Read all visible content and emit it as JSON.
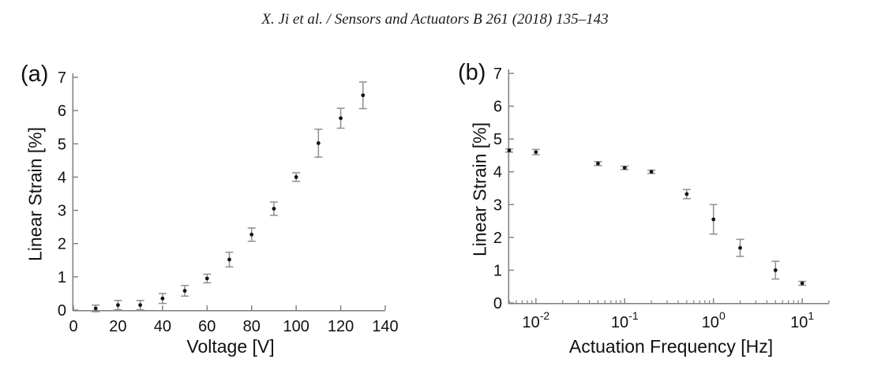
{
  "header": {
    "citation": "X. Ji et al. / Sensors and Actuators B 261 (2018) 135–143"
  },
  "colors": {
    "axis": "#7d7d7d",
    "errorbar": "#8f8f8f",
    "marker": "#141414",
    "tick_text": "#111111"
  },
  "chart_data": [
    {
      "id": "a",
      "type": "scatter",
      "panel_label": "(a)",
      "xlabel": "Voltage [V]",
      "ylabel": "Linear Strain [%]",
      "xscale": "linear",
      "xlim": [
        0,
        140
      ],
      "ylim": [
        0,
        7
      ],
      "xticks": [
        0,
        20,
        40,
        60,
        80,
        100,
        120,
        140
      ],
      "yticks": [
        0,
        1,
        2,
        3,
        4,
        5,
        6,
        7
      ],
      "grid": false,
      "legend": null,
      "points": [
        {
          "x": 10,
          "y": 0.05,
          "err": 0.1
        },
        {
          "x": 20,
          "y": 0.15,
          "err": 0.14
        },
        {
          "x": 30,
          "y": 0.15,
          "err": 0.14
        },
        {
          "x": 40,
          "y": 0.35,
          "err": 0.15
        },
        {
          "x": 50,
          "y": 0.58,
          "err": 0.16
        },
        {
          "x": 60,
          "y": 0.95,
          "err": 0.13
        },
        {
          "x": 70,
          "y": 1.52,
          "err": 0.22
        },
        {
          "x": 80,
          "y": 2.27,
          "err": 0.2
        },
        {
          "x": 90,
          "y": 3.05,
          "err": 0.2
        },
        {
          "x": 100,
          "y": 4.0,
          "err": 0.13
        },
        {
          "x": 110,
          "y": 5.02,
          "err": 0.42
        },
        {
          "x": 120,
          "y": 5.77,
          "err": 0.3
        },
        {
          "x": 130,
          "y": 6.46,
          "err": 0.4
        }
      ]
    },
    {
      "id": "b",
      "type": "scatter",
      "panel_label": "(b)",
      "xlabel": "Actuation Frequency [Hz]",
      "ylabel": "Linear Strain [%]",
      "xscale": "log",
      "xlim": [
        0.005,
        20
      ],
      "ylim": [
        0,
        7
      ],
      "xticks": [
        0.01,
        0.1,
        1,
        10
      ],
      "yticks": [
        0,
        1,
        2,
        3,
        4,
        5,
        6,
        7
      ],
      "grid": false,
      "legend": null,
      "points": [
        {
          "x": 0.005,
          "y": 4.65,
          "err": 0.05
        },
        {
          "x": 0.01,
          "y": 4.6,
          "err": 0.08
        },
        {
          "x": 0.05,
          "y": 4.25,
          "err": 0.06
        },
        {
          "x": 0.1,
          "y": 4.12,
          "err": 0.05
        },
        {
          "x": 0.2,
          "y": 4.0,
          "err": 0.05
        },
        {
          "x": 0.5,
          "y": 3.32,
          "err": 0.14
        },
        {
          "x": 1,
          "y": 2.55,
          "err": 0.45
        },
        {
          "x": 2,
          "y": 1.68,
          "err": 0.26
        },
        {
          "x": 5,
          "y": 1.0,
          "err": 0.27
        },
        {
          "x": 10,
          "y": 0.6,
          "err": 0.06
        }
      ]
    }
  ]
}
